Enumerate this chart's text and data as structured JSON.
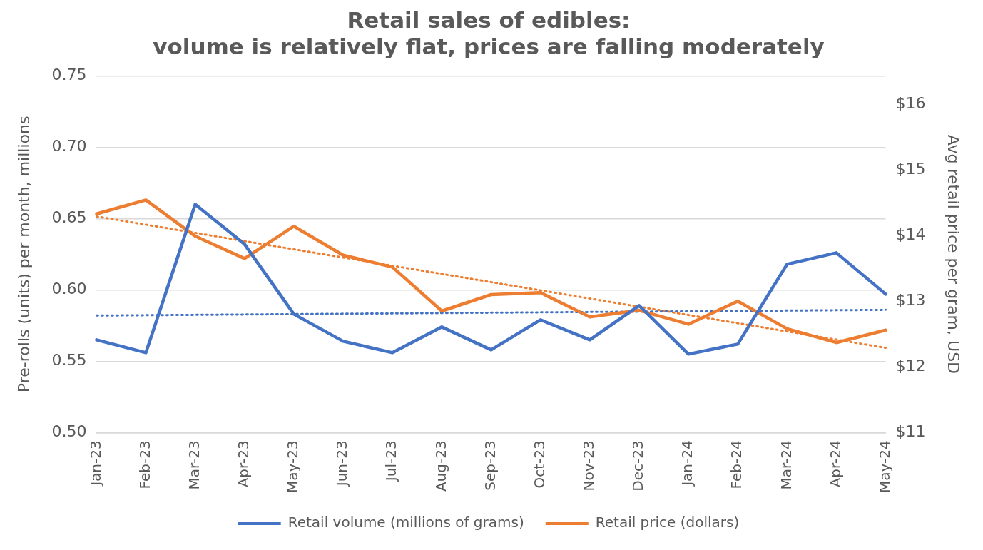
{
  "chart_data": {
    "type": "line",
    "title": "Retail sales of edibles:",
    "subtitle": "volume is relatively flat, prices are falling moderately",
    "ylabel": "Pre-rolls (units) per month, millions",
    "y2label": "Avg retail price per gram, USD",
    "categories": [
      "Jan-23",
      "Feb-23",
      "Mar-23",
      "Apr-23",
      "May-23",
      "Jun-23",
      "Jul-23",
      "Aug-23",
      "Sep-23",
      "Oct-23",
      "Nov-23",
      "Dec-23",
      "Jan-24",
      "Feb-24",
      "Mar-24",
      "Apr-24",
      "May-24"
    ],
    "series": [
      {
        "name": "Retail volume (millions of grams)",
        "color": "#4472c4",
        "values": [
          0.565,
          0.556,
          0.66,
          0.632,
          0.583,
          0.564,
          0.556,
          0.574,
          0.558,
          0.579,
          0.565,
          0.589,
          0.555,
          0.562,
          0.618,
          0.626,
          0.597
        ]
      },
      {
        "name": "Retail price (dollars)",
        "color": "#ed7d31",
        "axis": "y2",
        "values": [
          14.33,
          14.54,
          13.99,
          13.65,
          14.14,
          13.7,
          13.52,
          12.85,
          13.1,
          13.13,
          12.76,
          12.86,
          12.65,
          13.0,
          12.58,
          12.37,
          12.56
        ]
      },
      {
        "type": "line",
        "color": "#4472c4",
        "line_style": "dotted",
        "x": [
          "Jan-23",
          "May-24"
        ],
        "values": [
          0.582,
          0.586
        ]
      },
      {
        "type": "line",
        "color": "#ed7d31",
        "line_style": "dotted",
        "axis": "y2",
        "x": [
          "Jan-23",
          "May-24"
        ],
        "values": [
          14.29,
          12.29
        ]
      }
    ],
    "ylim": [
      0.5,
      0.75
    ],
    "yticks": [
      {
        "value": 0.5,
        "label": "0.50"
      },
      {
        "value": 0.55,
        "label": "0.55"
      },
      {
        "value": 0.6,
        "label": "0.60"
      },
      {
        "value": 0.65,
        "label": "0.65"
      },
      {
        "value": 0.7,
        "label": "0.70"
      },
      {
        "value": 0.75,
        "label": "0.75"
      }
    ],
    "y2lim": [
      11,
      16.43
    ],
    "y2ticks": [
      {
        "value": 11,
        "label": "$11"
      },
      {
        "value": 12,
        "label": "$12"
      },
      {
        "value": 13,
        "label": "$13"
      },
      {
        "value": 14,
        "label": "$14"
      },
      {
        "value": 15,
        "label": "$15"
      },
      {
        "value": 16,
        "label": "$16"
      }
    ],
    "grid": "y",
    "legend": "bottom",
    "marker": "none",
    "line_style": "solid"
  }
}
